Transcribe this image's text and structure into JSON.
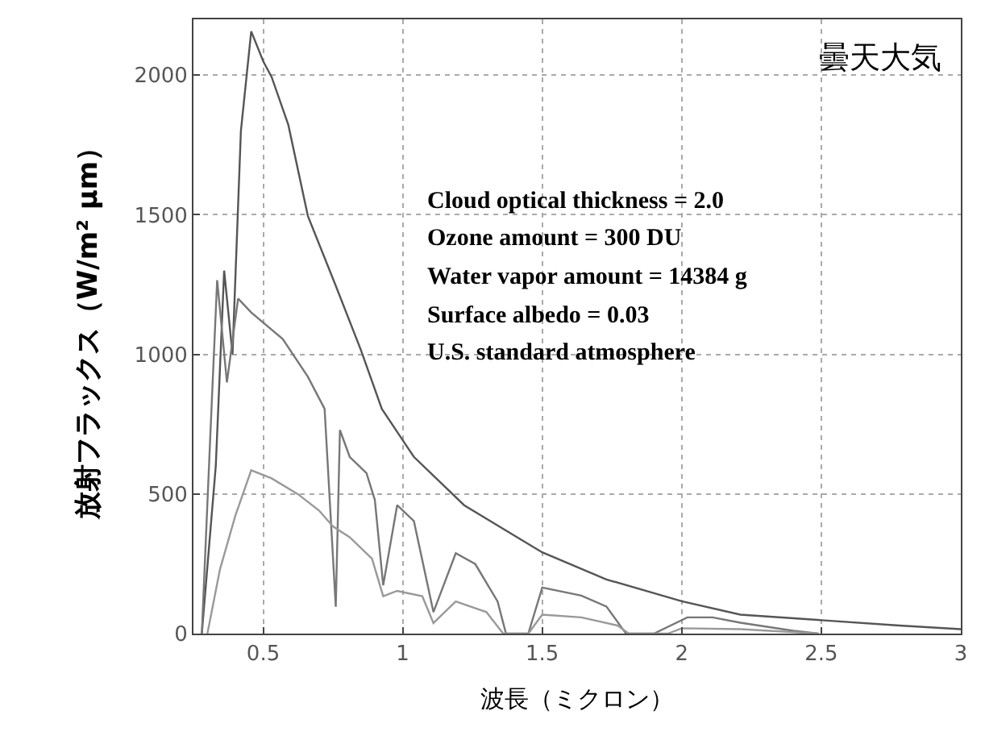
{
  "chart_data": {
    "type": "line",
    "xlabel": "波長（ミクロン）",
    "ylabel": "放射フラックス（W/m² μm）",
    "annotations": [
      "曇天大気",
      "Cloud optical thickness = 2.0",
      "Ozone amount = 300 DU",
      "Water vapor amount = 14384 g",
      "Surface albedo = 0.03",
      "U.S. standard atmosphere"
    ],
    "xlim": [
      0.25,
      3
    ],
    "ylim": [
      0,
      2200
    ],
    "xticks": [
      0.5,
      1,
      1.5,
      2,
      2.5,
      3
    ],
    "yticks": [
      0,
      500,
      1000,
      1500,
      2000
    ],
    "grid": true,
    "marker": "none",
    "line_style": "solid",
    "series": [
      {
        "color": "#555555",
        "x": [
          0.28,
          0.33,
          0.36,
          0.39,
          0.42,
          0.457,
          0.5,
          0.53,
          0.59,
          0.66,
          0.76,
          0.85,
          0.925,
          1.04,
          1.22,
          1.41,
          1.5,
          1.73,
          2.0,
          2.21,
          2.5,
          2.78,
          3.0
        ],
        "values": [
          0,
          600,
          1300,
          1000,
          1800,
          2157,
          2050,
          1994,
          1822,
          1496,
          1246,
          1016,
          805,
          633,
          460,
          345,
          291,
          194,
          116,
          68,
          48,
          29,
          16
        ]
      },
      {
        "color": "#777777",
        "x": [
          0.28,
          0.31,
          0.335,
          0.37,
          0.41,
          0.457,
          0.57,
          0.66,
          0.72,
          0.76,
          0.775,
          0.81,
          0.87,
          0.9,
          0.93,
          0.98,
          1.04,
          1.11,
          1.19,
          1.26,
          1.34,
          1.37,
          1.45,
          1.5,
          1.64,
          1.73,
          1.8,
          1.9,
          2.02,
          2.11,
          2.21,
          2.4,
          2.49
        ],
        "values": [
          0,
          700,
          1266,
          900,
          1200,
          1150,
          1055,
          920,
          805,
          96,
          729,
          633,
          575,
          479,
          173,
          460,
          403,
          77,
          288,
          249,
          115,
          0,
          0,
          165,
          136,
          97,
          0,
          0,
          58,
          58,
          39,
          10,
          0
        ]
      },
      {
        "color": "#999999",
        "x": [
          0.3,
          0.345,
          0.4,
          0.457,
          0.53,
          0.625,
          0.7,
          0.75,
          0.81,
          0.89,
          0.93,
          0.98,
          1.07,
          1.11,
          1.19,
          1.3,
          1.36,
          1.45,
          1.5,
          1.64,
          1.77,
          1.81,
          1.95,
          2.0,
          2.21,
          2.49
        ],
        "values": [
          0,
          230,
          422,
          585,
          556,
          499,
          441,
          384,
          345,
          268,
          134,
          153,
          134,
          38,
          115,
          77,
          0,
          0,
          68,
          58,
          29,
          0,
          0,
          19,
          16,
          0
        ]
      }
    ]
  }
}
